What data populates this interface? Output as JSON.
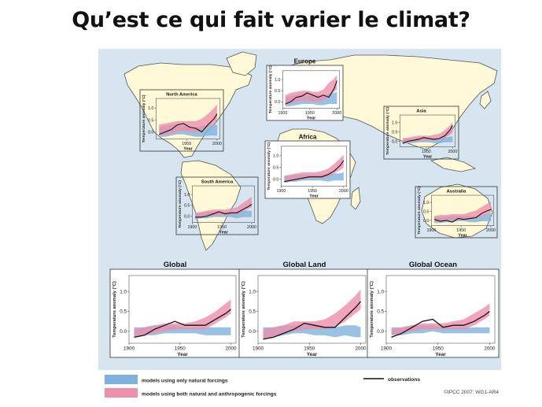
{
  "slide": {
    "title": "Qu’est ce qui fait varier le climat?"
  },
  "credit": "©IPCC  2007: WG1-AR4",
  "colors": {
    "ocean": "#d6e5ef",
    "land": "#fff9d8",
    "natural": "#7eb1dc",
    "both": "#ee8fab",
    "observations": "#111111"
  },
  "legend": {
    "natural": "models using only natural forcings",
    "both": "models using both natural and anthropogenic forcings",
    "observations": "observations"
  },
  "chart_data": [
    {
      "type": "line",
      "name": "North America",
      "title": "North America",
      "ylabel": "Temperature anomaly (°C)",
      "xlabel": "Year",
      "xticks": [
        1950,
        2000
      ],
      "yticks": [
        0.0,
        0.5,
        1.0
      ],
      "xlim": [
        1900,
        2005
      ],
      "ylim": [
        -0.3,
        1.4
      ],
      "x": [
        1905,
        1915,
        1925,
        1935,
        1945,
        1955,
        1965,
        1975,
        1985,
        1995,
        2000
      ],
      "observations": [
        -0.1,
        0.0,
        0.1,
        0.3,
        0.35,
        0.2,
        0.15,
        0.0,
        0.3,
        0.55,
        0.75
      ],
      "natural_band": {
        "lower": [
          -0.2,
          -0.2,
          -0.15,
          -0.1,
          -0.1,
          -0.15,
          -0.2,
          -0.2,
          -0.15,
          -0.15,
          -0.15
        ],
        "upper": [
          0.2,
          0.25,
          0.3,
          0.3,
          0.25,
          0.25,
          0.2,
          0.25,
          0.3,
          0.3,
          0.3
        ]
      },
      "both_band": {
        "lower": [
          -0.15,
          -0.1,
          -0.05,
          0.0,
          0.05,
          0.0,
          0.0,
          0.05,
          0.2,
          0.35,
          0.5
        ],
        "upper": [
          0.3,
          0.35,
          0.4,
          0.45,
          0.45,
          0.45,
          0.45,
          0.55,
          0.75,
          1.0,
          1.15
        ]
      }
    },
    {
      "type": "line",
      "name": "Europe",
      "title": "Europe",
      "ylabel": "Temperature anomaly (°C)",
      "xlabel": "Year",
      "xticks": [
        1900,
        1950,
        2000
      ],
      "yticks": [
        0.0,
        0.5,
        1.0
      ],
      "xlim": [
        1900,
        2005
      ],
      "ylim": [
        -0.3,
        1.4
      ],
      "x": [
        1905,
        1915,
        1925,
        1935,
        1945,
        1955,
        1965,
        1975,
        1985,
        1995,
        2000
      ],
      "observations": [
        -0.1,
        0.0,
        0.2,
        0.25,
        0.4,
        0.3,
        0.2,
        0.3,
        0.2,
        0.6,
        0.95
      ],
      "natural_band": {
        "lower": [
          -0.2,
          -0.2,
          -0.15,
          -0.1,
          -0.1,
          -0.1,
          -0.15,
          -0.15,
          -0.1,
          -0.1,
          -0.1
        ],
        "upper": [
          0.2,
          0.25,
          0.3,
          0.35,
          0.3,
          0.3,
          0.3,
          0.3,
          0.35,
          0.4,
          0.45
        ]
      },
      "both_band": {
        "lower": [
          -0.15,
          -0.05,
          0.0,
          0.05,
          0.05,
          0.0,
          0.0,
          0.05,
          0.25,
          0.45,
          0.55
        ],
        "upper": [
          0.3,
          0.4,
          0.45,
          0.5,
          0.5,
          0.45,
          0.45,
          0.55,
          0.85,
          1.05,
          1.2
        ]
      }
    },
    {
      "type": "line",
      "name": "Asia",
      "title": "Asia",
      "ylabel": "Temperature anomaly (°C)",
      "xlabel": "Year",
      "xticks": [
        1950,
        2000
      ],
      "yticks": [
        0.0,
        0.5,
        1.0
      ],
      "xlim": [
        1900,
        2005
      ],
      "ylim": [
        -0.3,
        1.4
      ],
      "x": [
        1905,
        1915,
        1925,
        1935,
        1945,
        1955,
        1965,
        1975,
        1985,
        1995,
        2000
      ],
      "observations": [
        -0.1,
        0.0,
        0.05,
        0.1,
        0.2,
        0.15,
        0.1,
        0.15,
        0.3,
        0.6,
        0.85
      ],
      "natural_band": {
        "lower": [
          -0.15,
          -0.1,
          -0.1,
          -0.05,
          -0.05,
          -0.05,
          -0.1,
          -0.1,
          -0.05,
          -0.05,
          -0.05
        ],
        "upper": [
          0.15,
          0.15,
          0.15,
          0.2,
          0.2,
          0.15,
          0.15,
          0.15,
          0.2,
          0.25,
          0.25
        ]
      },
      "both_band": {
        "lower": [
          -0.1,
          -0.05,
          0.0,
          0.0,
          0.05,
          0.05,
          0.05,
          0.1,
          0.2,
          0.35,
          0.45
        ],
        "upper": [
          0.15,
          0.2,
          0.25,
          0.3,
          0.3,
          0.3,
          0.35,
          0.4,
          0.6,
          0.85,
          1.0
        ]
      }
    },
    {
      "type": "line",
      "name": "Africa",
      "title": "Africa",
      "ylabel": "Temperature anomaly (°C)",
      "xlabel": "Year",
      "xticks": [
        1900,
        1950,
        2000
      ],
      "yticks": [
        0.0,
        0.5,
        1.0
      ],
      "xlim": [
        1900,
        2005
      ],
      "ylim": [
        -0.3,
        1.4
      ],
      "x": [
        1905,
        1915,
        1925,
        1935,
        1945,
        1955,
        1965,
        1975,
        1985,
        1995,
        2000
      ],
      "observations": [
        -0.1,
        -0.05,
        0.0,
        0.05,
        0.1,
        0.1,
        0.1,
        0.2,
        0.35,
        0.6,
        0.8
      ],
      "natural_band": {
        "lower": [
          -0.15,
          -0.1,
          -0.1,
          -0.05,
          -0.05,
          -0.05,
          -0.05,
          -0.1,
          -0.05,
          -0.05,
          -0.05
        ],
        "upper": [
          0.15,
          0.15,
          0.2,
          0.2,
          0.2,
          0.2,
          0.2,
          0.2,
          0.25,
          0.25,
          0.3
        ]
      },
      "both_band": {
        "lower": [
          -0.1,
          -0.05,
          0.0,
          0.0,
          0.05,
          0.05,
          0.05,
          0.1,
          0.25,
          0.4,
          0.5
        ],
        "upper": [
          0.15,
          0.2,
          0.25,
          0.3,
          0.3,
          0.3,
          0.35,
          0.45,
          0.65,
          0.9,
          1.05
        ]
      }
    },
    {
      "type": "line",
      "name": "South America",
      "title": "South America",
      "ylabel": "Temperature anomaly (°C)",
      "xlabel": "Year",
      "xticks": [
        1900,
        1950,
        2000
      ],
      "yticks": [
        0.0,
        0.5,
        1.0
      ],
      "xlim": [
        1900,
        2005
      ],
      "ylim": [
        -0.3,
        1.4
      ],
      "x": [
        1905,
        1915,
        1925,
        1935,
        1945,
        1955,
        1965,
        1975,
        1985,
        1995,
        2000
      ],
      "observations": [
        -0.05,
        -0.05,
        0.0,
        0.1,
        0.2,
        0.1,
        0.15,
        0.15,
        0.3,
        0.45,
        0.55
      ],
      "natural_band": {
        "lower": [
          -0.15,
          -0.1,
          -0.1,
          -0.05,
          -0.05,
          -0.05,
          -0.05,
          -0.1,
          -0.05,
          -0.05,
          -0.05
        ],
        "upper": [
          0.15,
          0.15,
          0.2,
          0.2,
          0.2,
          0.2,
          0.2,
          0.2,
          0.25,
          0.25,
          0.25
        ]
      },
      "both_band": {
        "lower": [
          -0.1,
          -0.05,
          0.0,
          0.0,
          0.05,
          0.05,
          0.05,
          0.1,
          0.2,
          0.35,
          0.4
        ],
        "upper": [
          0.15,
          0.2,
          0.25,
          0.3,
          0.3,
          0.3,
          0.35,
          0.4,
          0.6,
          0.8,
          0.9
        ]
      }
    },
    {
      "type": "line",
      "name": "Australia",
      "title": "Australia",
      "ylabel": "Temperature anomaly (°C)",
      "xlabel": "Year",
      "xticks": [
        1900,
        1950,
        2000
      ],
      "yticks": [
        0.0,
        0.5,
        1.0
      ],
      "xlim": [
        1900,
        2005
      ],
      "ylim": [
        -0.3,
        1.4
      ],
      "x": [
        1905,
        1915,
        1925,
        1935,
        1945,
        1955,
        1965,
        1975,
        1985,
        1995,
        2000
      ],
      "observations": [
        0.05,
        -0.05,
        0.0,
        -0.1,
        0.1,
        0.05,
        0.1,
        0.15,
        0.4,
        0.55,
        0.6
      ],
      "natural_band": {
        "lower": [
          -0.15,
          -0.15,
          -0.1,
          -0.1,
          -0.05,
          -0.05,
          -0.1,
          -0.1,
          -0.05,
          -0.05,
          -0.05
        ],
        "upper": [
          0.2,
          0.2,
          0.2,
          0.25,
          0.25,
          0.25,
          0.25,
          0.25,
          0.3,
          0.35,
          0.4
        ]
      },
      "both_band": {
        "lower": [
          -0.1,
          -0.05,
          0.0,
          0.0,
          0.05,
          0.0,
          0.05,
          0.1,
          0.25,
          0.35,
          0.4
        ],
        "upper": [
          0.25,
          0.3,
          0.3,
          0.35,
          0.35,
          0.35,
          0.45,
          0.55,
          0.75,
          0.95,
          1.05
        ]
      }
    },
    {
      "type": "line",
      "name": "Global",
      "title": "Global",
      "ylabel": "Temperature anomaly (°C)",
      "xlabel": "Year",
      "xticks": [
        1900,
        1950,
        2000
      ],
      "yticks": [
        0.0,
        0.5,
        1.0
      ],
      "xlim": [
        1900,
        2005
      ],
      "ylim": [
        -0.3,
        1.4
      ],
      "x": [
        1905,
        1915,
        1925,
        1935,
        1945,
        1955,
        1965,
        1975,
        1985,
        1995,
        2000
      ],
      "observations": [
        -0.15,
        -0.1,
        0.05,
        0.15,
        0.25,
        0.15,
        0.15,
        0.15,
        0.3,
        0.45,
        0.55
      ],
      "natural_band": {
        "lower": [
          -0.15,
          -0.1,
          -0.1,
          -0.05,
          -0.05,
          -0.05,
          -0.05,
          -0.1,
          -0.1,
          -0.1,
          -0.1
        ],
        "upper": [
          0.1,
          0.1,
          0.15,
          0.15,
          0.15,
          0.1,
          0.1,
          0.1,
          0.1,
          0.1,
          0.1
        ]
      },
      "both_band": {
        "lower": [
          -0.15,
          -0.1,
          -0.05,
          0.0,
          0.05,
          0.05,
          0.05,
          0.05,
          0.2,
          0.35,
          0.45
        ],
        "upper": [
          0.05,
          0.1,
          0.15,
          0.2,
          0.2,
          0.2,
          0.25,
          0.35,
          0.5,
          0.7,
          0.8
        ]
      }
    },
    {
      "type": "line",
      "name": "Global Land",
      "title": "Global Land",
      "ylabel": "Temperature anomaly (°C)",
      "xlabel": "Year",
      "xticks": [
        1900,
        1950,
        2000
      ],
      "yticks": [
        0.0,
        0.5,
        1.0
      ],
      "xlim": [
        1900,
        2005
      ],
      "ylim": [
        -0.3,
        1.4
      ],
      "x": [
        1905,
        1915,
        1925,
        1935,
        1945,
        1955,
        1965,
        1975,
        1985,
        1995,
        2000
      ],
      "observations": [
        -0.2,
        -0.15,
        -0.05,
        0.05,
        0.2,
        0.15,
        0.1,
        0.1,
        0.35,
        0.6,
        0.75
      ],
      "natural_band": {
        "lower": [
          -0.2,
          -0.15,
          -0.1,
          -0.05,
          -0.05,
          -0.1,
          -0.1,
          -0.15,
          -0.1,
          -0.15,
          -0.15
        ],
        "upper": [
          0.1,
          0.1,
          0.15,
          0.15,
          0.15,
          0.15,
          0.1,
          0.1,
          0.15,
          0.15,
          0.1
        ]
      },
      "both_band": {
        "lower": [
          -0.2,
          -0.15,
          -0.05,
          0.0,
          0.05,
          0.05,
          0.05,
          0.1,
          0.25,
          0.45,
          0.55
        ],
        "upper": [
          0.05,
          0.1,
          0.15,
          0.25,
          0.25,
          0.25,
          0.3,
          0.45,
          0.65,
          0.9,
          1.05
        ]
      }
    },
    {
      "type": "line",
      "name": "Global Ocean",
      "title": "Global Ocean",
      "ylabel": "Temperature anomaly (°C)",
      "xlabel": "Year",
      "xticks": [
        1900,
        1950,
        2000
      ],
      "yticks": [
        0.0,
        0.5,
        1.0
      ],
      "xlim": [
        1900,
        2005
      ],
      "ylim": [
        -0.3,
        1.4
      ],
      "x": [
        1905,
        1915,
        1925,
        1935,
        1945,
        1955,
        1965,
        1975,
        1985,
        1995,
        2000
      ],
      "observations": [
        -0.15,
        -0.05,
        0.1,
        0.25,
        0.3,
        0.1,
        0.15,
        0.15,
        0.25,
        0.4,
        0.5
      ],
      "natural_band": {
        "lower": [
          -0.1,
          -0.1,
          -0.05,
          -0.05,
          0.0,
          -0.05,
          -0.05,
          -0.05,
          -0.05,
          -0.05,
          -0.05
        ],
        "upper": [
          0.1,
          0.1,
          0.15,
          0.15,
          0.15,
          0.1,
          0.1,
          0.1,
          0.1,
          0.1,
          0.1
        ]
      },
      "both_band": {
        "lower": [
          -0.1,
          -0.05,
          0.0,
          0.05,
          0.05,
          0.05,
          0.05,
          0.05,
          0.15,
          0.3,
          0.4
        ],
        "upper": [
          0.05,
          0.1,
          0.15,
          0.2,
          0.2,
          0.2,
          0.25,
          0.3,
          0.45,
          0.6,
          0.7
        ]
      }
    }
  ]
}
